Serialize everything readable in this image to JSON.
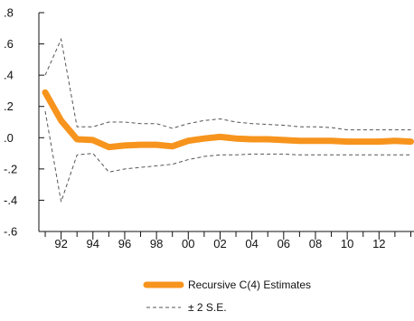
{
  "chart_data": {
    "type": "line",
    "x": [
      1991,
      1992,
      1993,
      1994,
      1995,
      1996,
      1997,
      1998,
      1999,
      2000,
      2001,
      2002,
      2003,
      2004,
      2005,
      2006,
      2007,
      2008,
      2009,
      2010,
      2011,
      2012,
      2013,
      2014
    ],
    "x_tick_values": [
      1992,
      1994,
      1996,
      1998,
      2000,
      2002,
      2004,
      2006,
      2008,
      2010,
      2012
    ],
    "x_tick_labels": [
      "92",
      "94",
      "96",
      "98",
      "00",
      "02",
      "04",
      "06",
      "08",
      "10",
      "12"
    ],
    "xlim": [
      1990.6,
      2014.2
    ],
    "ylim": [
      -0.6,
      0.8
    ],
    "y_tick_values": [
      0.8,
      0.6,
      0.4,
      0.2,
      0.0,
      -0.2,
      -0.4,
      -0.6
    ],
    "y_tick_labels": [
      ".8",
      ".6",
      ".4",
      ".2",
      ".0",
      "-.2",
      "-.4",
      "-.6"
    ],
    "series": [
      {
        "name": "Recursive C(4) Estimates",
        "color": "#F7941D",
        "style": "solid-thick",
        "values": [
          0.29,
          0.11,
          -0.01,
          -0.015,
          -0.06,
          -0.05,
          -0.045,
          -0.045,
          -0.055,
          -0.02,
          -0.005,
          0.005,
          -0.005,
          -0.01,
          -0.01,
          -0.015,
          -0.02,
          -0.02,
          -0.02,
          -0.025,
          -0.025,
          -0.025,
          -0.02,
          -0.025
        ]
      },
      {
        "name": "± 2 S.E.",
        "color": "#555555",
        "style": "dashed",
        "upper": [
          0.4,
          0.63,
          0.07,
          0.07,
          0.1,
          0.1,
          0.09,
          0.09,
          0.06,
          0.09,
          0.11,
          0.12,
          0.1,
          0.09,
          0.085,
          0.08,
          0.07,
          0.07,
          0.065,
          0.05,
          0.05,
          0.05,
          0.05,
          0.05
        ],
        "lower": [
          0.17,
          -0.41,
          -0.11,
          -0.1,
          -0.22,
          -0.2,
          -0.19,
          -0.18,
          -0.17,
          -0.14,
          -0.12,
          -0.11,
          -0.11,
          -0.105,
          -0.105,
          -0.105,
          -0.11,
          -0.11,
          -0.11,
          -0.11,
          -0.11,
          -0.11,
          -0.11,
          -0.11
        ]
      }
    ],
    "legend": [
      {
        "label": "Recursive C(4) Estimates",
        "color": "#F7941D",
        "style": "solid-thick"
      },
      {
        "label": "± 2  S.E.",
        "color": "#555555",
        "style": "dashed"
      }
    ],
    "legend_position": "bottom-center",
    "grid": false
  }
}
